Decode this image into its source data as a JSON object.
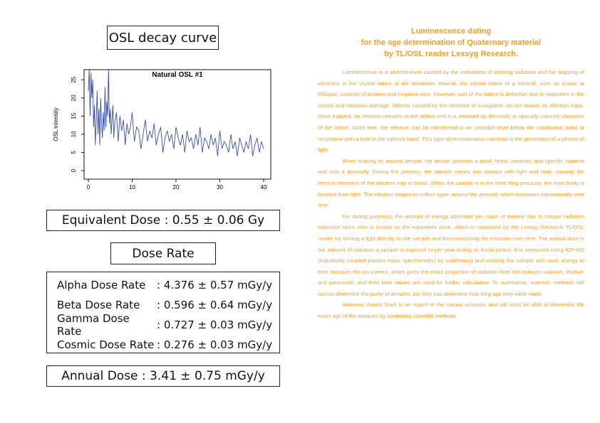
{
  "left": {
    "chart_heading": "OSL decay curve",
    "equivalent_dose": "Equivalent Dose : 0.55 ± 0.06 Gy",
    "dose_rate_heading": "Dose Rate",
    "dose_rates": [
      {
        "label": "Alpha Dose Rate",
        "value": ": 4.376 ± 0.57 mGy/y"
      },
      {
        "label": "Beta Dose Rate",
        "value": ": 0.596 ± 0.64 mGy/y"
      },
      {
        "label": "Gamma Dose Rate",
        "value": ": 0.727 ± 0.03 mGy/y"
      },
      {
        "label": "Cosmic Dose Rate",
        "value": ": 0.276 ± 0.03 mGy/y"
      }
    ],
    "annual_dose": "Annual Dose : 3.41 ± 0.75 mGy/y"
  },
  "chart_data": {
    "type": "line",
    "title": "Natural OSL #1",
    "ylabel": "OSL intensity",
    "xlabel": "",
    "xlim": [
      0,
      40
    ],
    "ylim": [
      0,
      27
    ],
    "xticks": [
      "0",
      "10",
      "20",
      "30",
      "40"
    ],
    "yticks": [
      "0",
      "5",
      "10",
      "15",
      "20",
      "25"
    ],
    "grid": false,
    "line_color": "#3a4fa8",
    "series": [
      {
        "x": [
          0.0,
          0.2,
          0.4,
          0.6,
          0.8,
          1.0,
          1.2,
          1.4,
          1.6,
          1.8,
          2.0,
          2.2,
          2.4,
          2.6,
          2.8,
          3.0,
          3.2,
          3.4,
          3.6,
          3.8,
          4.0,
          4.2,
          4.4,
          4.6,
          4.8,
          5.0,
          5.2,
          5.4,
          5.6,
          5.8,
          6.0,
          6.4,
          6.8,
          7.2,
          7.6,
          8.0,
          8.4,
          8.8,
          9.2,
          9.6,
          10.0,
          10.5,
          11.0,
          11.5,
          12.0,
          12.5,
          13.0,
          13.5,
          14.0,
          14.5,
          15.0,
          15.5,
          16.0,
          16.5,
          17.0,
          17.5,
          18.0,
          18.5,
          19.0,
          19.5,
          20.0,
          20.5,
          21.0,
          21.5,
          22.0,
          22.5,
          23.0,
          23.5,
          24.0,
          24.5,
          25.0,
          25.5,
          26.0,
          26.5,
          27.0,
          27.5,
          28.0,
          28.5,
          29.0,
          29.5,
          30.0,
          30.5,
          31.0,
          31.5,
          32.0,
          32.5,
          33.0,
          33.5,
          34.0,
          34.5,
          35.0,
          35.5,
          36.0,
          36.5,
          37.0,
          37.5,
          38.0,
          38.5,
          39.0,
          39.5,
          40.0
        ],
        "values": [
          22,
          28,
          15,
          27,
          20,
          25,
          12,
          18,
          7,
          14,
          22,
          10,
          17,
          7,
          20,
          13,
          9,
          16,
          11,
          23,
          12,
          19,
          15,
          28,
          13,
          17,
          10,
          14,
          18,
          9,
          13,
          16,
          8,
          15,
          11,
          14,
          7,
          13,
          10,
          12,
          16,
          8,
          12,
          11,
          6,
          10,
          14,
          8,
          11,
          9,
          13,
          7,
          10,
          12,
          5,
          9,
          11,
          8,
          10,
          6,
          12,
          9,
          7,
          10,
          5,
          11,
          8,
          9,
          6,
          10,
          7,
          12,
          5,
          9,
          8,
          6,
          10,
          7,
          9,
          4,
          11,
          6,
          8,
          7,
          5,
          10,
          6,
          8,
          4,
          9,
          7,
          5,
          8,
          6,
          10,
          4,
          7,
          9,
          5,
          8,
          6
        ]
      }
    ]
  },
  "right": {
    "title_lines": [
      "Luminescence dating",
      "for the age determination of Quaternary material",
      "by TL/OSL reader Lexsyg Research."
    ],
    "paragraphs": [
      "Luminescence is a phenomenon caused by the interaction of ionising radiation and the trapping of electrons in the crystal lattice of the dosimeter mineral. the crystal lattice of a mineral, such as quartz or feldspar, consists of positive and negative ions. However, part of the lattice is defective due to impurities in the crystal and radiation damage. Defects caused by the absence of a negative ion are known as electron traps. Once trapped, an electron remains in the defect until it is released by thermally or optically induced vibrations of the lattice. Once free, the electron can be transferred to an unstable level below the conduction band or recombine with a hole in the valence band. This type of recombination can lead to the generation of a photon of light.",
      "When making an ancient amulet, the artisan provides a bowl, herbs, minerals and specific material and cuts it precisely. During the process, the sample comes into contact with light and heat, causing the internal electrons of the electron trap to break. When the sample is in the fixed blog pressure, the inner body is blocked from light. The electron begins to collect again around the amount, which increases exponentially over time.",
      "For dating purposes, the amount of energy absorbed per mass of mineral due to natural radiation exposure since zero is known as the equivalent dose, which is measured by the Lexsyg Research TL/OSL reader by shining a light directly on the sample and then measuring the emission over time. The annual dose is the amount of radiation a sample is exposed to per year during its burial period. It is measured using ICP-MS (inductively coupled plasma mass spectrometry) by sublimating and ionizing the sample with laser energy to then measure the ion current, which gives the exact proportion of radiation from the isotopes uranium, thorium and potassium, and then both values are used for further calculation. To summarise, scientific methods still cannot determine the purity of amulets, but they can determine how long ago they were made.",
      "However, Amata Siam is an expert in the natural sciences and will soon be able to determine the exact age of the antiques by combining scientific methods."
    ]
  }
}
